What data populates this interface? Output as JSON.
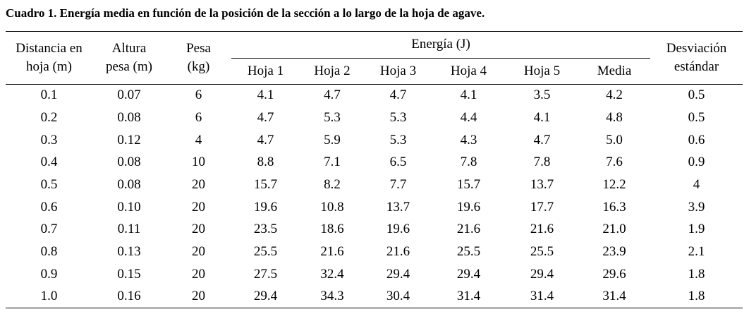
{
  "caption": "Cuadro 1. Energía media en función de la posición de la sección a lo largo de la hoja de agave.",
  "table": {
    "headers": {
      "distancia": {
        "line1": "Distancia en",
        "line2": "hoja (m)"
      },
      "altura": {
        "line1": "Altura",
        "line2": "pesa (m)"
      },
      "pesa": {
        "line1": "Pesa",
        "line2": "(kg)"
      },
      "energia_group": "Energía (J)",
      "energia_subcols": [
        "Hoja 1",
        "Hoja 2",
        "Hoja 3",
        "Hoja 4",
        "Hoja 5",
        "Media"
      ],
      "desviacion": {
        "line1": "Desviación",
        "line2": "estándar"
      }
    },
    "rows": [
      [
        "0.1",
        "0.07",
        "6",
        "4.1",
        "4.7",
        "4.7",
        "4.1",
        "3.5",
        "4.2",
        "0.5"
      ],
      [
        "0.2",
        "0.08",
        "6",
        "4.7",
        "5.3",
        "5.3",
        "4.4",
        "4.1",
        "4.8",
        "0.5"
      ],
      [
        "0.3",
        "0.12",
        "4",
        "4.7",
        "5.9",
        "5.3",
        "4.3",
        "4.7",
        "5.0",
        "0.6"
      ],
      [
        "0.4",
        "0.08",
        "10",
        "8.8",
        "7.1",
        "6.5",
        "7.8",
        "7.8",
        "7.6",
        "0.9"
      ],
      [
        "0.5",
        "0.08",
        "20",
        "15.7",
        "8.2",
        "7.7",
        "15.7",
        "13.7",
        "12.2",
        "4"
      ],
      [
        "0.6",
        "0.10",
        "20",
        "19.6",
        "10.8",
        "13.7",
        "19.6",
        "17.7",
        "16.3",
        "3.9"
      ],
      [
        "0.7",
        "0.11",
        "20",
        "23.5",
        "18.6",
        "19.6",
        "21.6",
        "21.6",
        "21.0",
        "1.9"
      ],
      [
        "0.8",
        "0.13",
        "20",
        "25.5",
        "21.6",
        "21.6",
        "25.5",
        "25.5",
        "23.9",
        "2.1"
      ],
      [
        "0.9",
        "0.15",
        "20",
        "27.5",
        "32.4",
        "29.4",
        "29.4",
        "29.4",
        "29.6",
        "1.8"
      ],
      [
        "1.0",
        "0.16",
        "20",
        "29.4",
        "34.3",
        "30.4",
        "31.4",
        "31.4",
        "31.4",
        "1.8"
      ]
    ]
  },
  "colors": {
    "text": "#000000",
    "rule": "#000000",
    "background": "#ffffff"
  }
}
